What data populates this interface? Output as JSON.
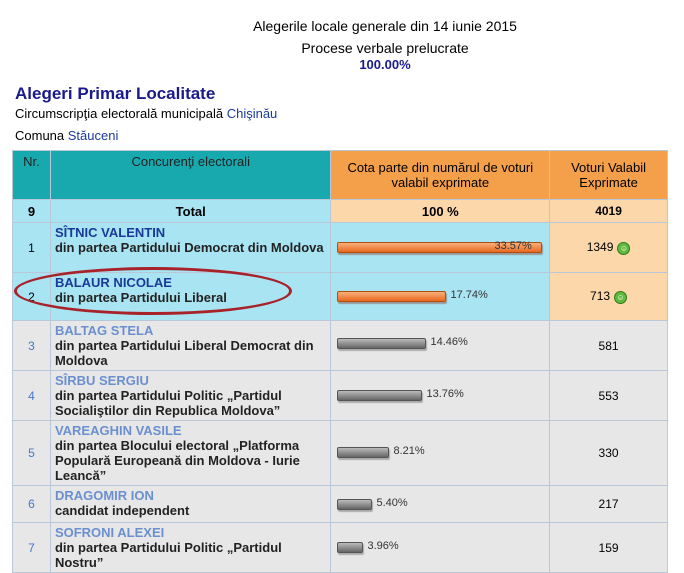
{
  "header": {
    "title": "Alegerile locale generale din 14 iunie 2015",
    "subtitle": "Procese verbale prelucrate",
    "processed": "100.00%"
  },
  "section": {
    "title": "Alegeri Primar Localitate",
    "district_label": "Circumscripţia electorală municipală",
    "district_value": "Chişinău",
    "commune_label": "Comuna",
    "commune_value": "Stăuceni"
  },
  "table": {
    "headers": {
      "nr": "Nr.",
      "candidates": "Concurenţi electorali",
      "share": "Cota parte din numărul de voturi valabil exprimate",
      "votes": "Voturi Valabil Exprimate"
    },
    "total": {
      "nr": "9",
      "label": "Total",
      "share": "100 %",
      "votes": "4019"
    },
    "rows": [
      {
        "nr": "1",
        "name": "SÎTNIC VALENTIN",
        "party": "din partea Partidului Democrat din Moldova",
        "pct_label": "33.57%",
        "pct": 33.57,
        "votes": "1349",
        "winner": true
      },
      {
        "nr": "2",
        "name": "BALAUR NICOLAE",
        "party": "din partea Partidului Liberal",
        "pct_label": "17.74%",
        "pct": 17.74,
        "votes": "713",
        "winner": true
      },
      {
        "nr": "3",
        "name": "BALTAG STELA",
        "party": "din partea Partidului Liberal Democrat din Moldova",
        "pct_label": "14.46%",
        "pct": 14.46,
        "votes": "581",
        "winner": false
      },
      {
        "nr": "4",
        "name": "SÎRBU SERGIU",
        "party": "din partea Partidului Politic „Partidul Socialiştilor din Republica Moldova”",
        "pct_label": "13.76%",
        "pct": 13.76,
        "votes": "553",
        "winner": false
      },
      {
        "nr": "5",
        "name": "VAREAGHIN VASILE",
        "party": "din partea Blocului electoral „Platforma Populară Europeană din Moldova - Iurie Leancă”",
        "pct_label": "8.21%",
        "pct": 8.21,
        "votes": "330",
        "winner": false
      },
      {
        "nr": "6",
        "name": "DRAGOMIR ION",
        "party": "candidat independent",
        "pct_label": "5.40%",
        "pct": 5.4,
        "votes": "217",
        "winner": false
      },
      {
        "nr": "7",
        "name": "SOFRONI ALEXEI",
        "party": "din partea Partidului Politic „Partidul Nostru”",
        "pct_label": "3.96%",
        "pct": 3.96,
        "votes": "159",
        "winner": false
      }
    ]
  },
  "colors": {
    "header_teal": "#17a9ae",
    "header_orange": "#f4a04a",
    "winner_blue": "#a8e4f2",
    "highlight_ellipse": "#a8222a"
  },
  "icons": {
    "winner": "smiley-icon"
  }
}
